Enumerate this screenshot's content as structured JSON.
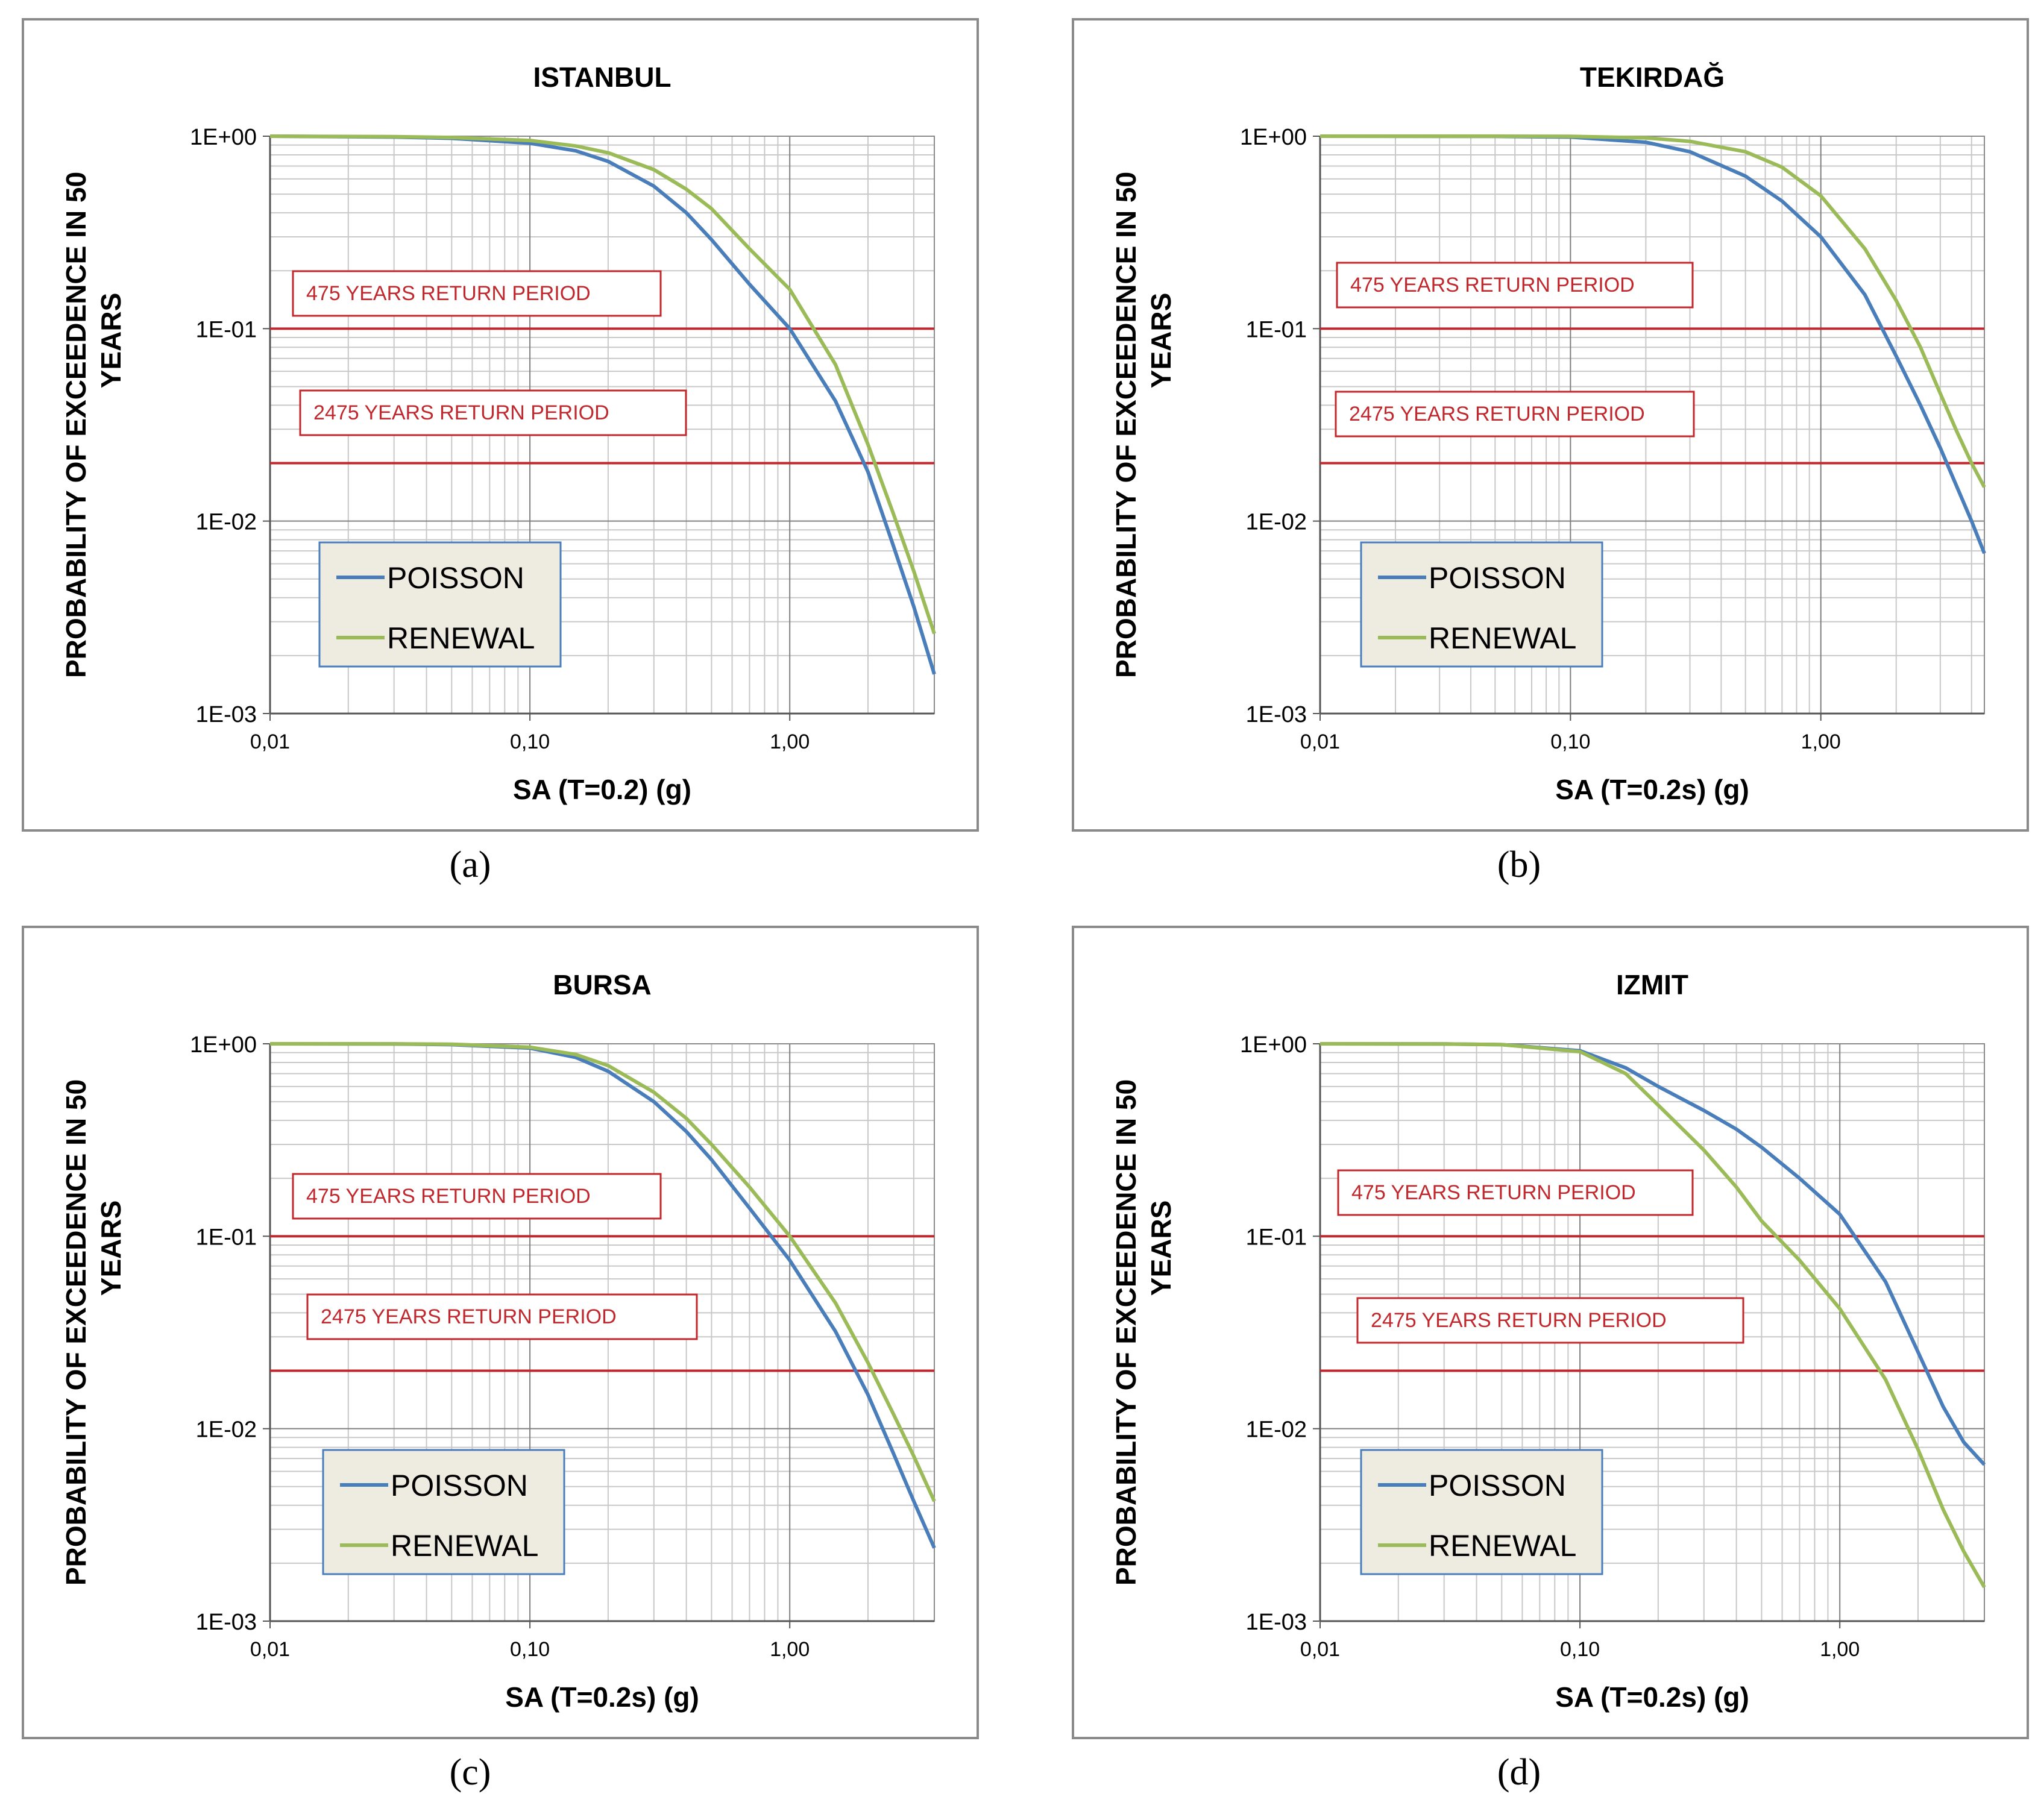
{
  "colors": {
    "poisson": "#4a7ebb",
    "renewal": "#9bbb59",
    "ref_line": "#c0282d",
    "grid": "#c8c8c8",
    "grid_major": "#7f7f7f",
    "legend_bg": "#eeece1",
    "legend_border": "#4a7ebb"
  },
  "captions": [
    "(a)",
    "(b)",
    "(c)",
    "(d)"
  ],
  "chart_data": [
    {
      "type": "line",
      "title": "ISTANBUL",
      "ylabel_lines": [
        "PROBABILITY OF EXCEEDENCE IN 50",
        "YEARS"
      ],
      "xlabel": "SA (T=0.2) (g)",
      "xscale": "log",
      "yscale": "log",
      "xlim": [
        0.01,
        3.6
      ],
      "ylim": [
        0.001,
        1
      ],
      "xticks": [
        "0,01",
        "0,10",
        "1,00"
      ],
      "yticks": [
        "1E+00",
        "1E-01",
        "1E-02",
        "1E-03"
      ],
      "reference_lines": [
        {
          "y": 0.1,
          "label": "475 YEARS RETURN PERIOD"
        },
        {
          "y": 0.02,
          "label": "2475 YEARS RETURN PERIOD"
        }
      ],
      "legend": [
        "POISSON",
        "RENEWAL"
      ],
      "series": [
        {
          "name": "POISSON",
          "x": [
            0.01,
            0.03,
            0.05,
            0.1,
            0.15,
            0.2,
            0.3,
            0.4,
            0.5,
            0.7,
            1.0,
            1.5,
            2.0,
            2.5,
            3.0,
            3.6
          ],
          "y": [
            1.0,
            0.99,
            0.975,
            0.92,
            0.84,
            0.74,
            0.55,
            0.4,
            0.29,
            0.17,
            0.1,
            0.042,
            0.018,
            0.0075,
            0.0036,
            0.0016
          ]
        },
        {
          "name": "RENEWAL",
          "x": [
            0.01,
            0.03,
            0.05,
            0.1,
            0.15,
            0.2,
            0.3,
            0.4,
            0.5,
            0.7,
            1.0,
            1.5,
            2.0,
            2.5,
            3.0,
            3.6
          ],
          "y": [
            1.0,
            0.995,
            0.985,
            0.95,
            0.89,
            0.82,
            0.67,
            0.53,
            0.42,
            0.26,
            0.16,
            0.065,
            0.025,
            0.011,
            0.0055,
            0.0026
          ]
        }
      ]
    },
    {
      "type": "line",
      "title": "TEKIRDAĞ",
      "ylabel_lines": [
        "PROBABILITY OF EXCEEDENCE IN 50",
        "YEARS"
      ],
      "xlabel": "SA (T=0.2s)  (g)",
      "xscale": "log",
      "yscale": "log",
      "xlim": [
        0.01,
        4.5
      ],
      "ylim": [
        0.001,
        1
      ],
      "xticks": [
        "0,01",
        "0,10",
        "1,00"
      ],
      "yticks": [
        "1E+00",
        "1E-01",
        "1E-02",
        "1E-03"
      ],
      "reference_lines": [
        {
          "y": 0.1,
          "label": "475 YEARS RETURN PERIOD"
        },
        {
          "y": 0.02,
          "label": "2475 YEARS RETURN PERIOD"
        }
      ],
      "legend": [
        "POISSON",
        "RENEWAL"
      ],
      "series": [
        {
          "name": "POISSON",
          "x": [
            0.01,
            0.05,
            0.1,
            0.2,
            0.3,
            0.5,
            0.7,
            1.0,
            1.5,
            2.0,
            2.5,
            3.0,
            3.5,
            4.0,
            4.5
          ],
          "y": [
            1.0,
            0.998,
            0.99,
            0.93,
            0.83,
            0.62,
            0.46,
            0.3,
            0.15,
            0.072,
            0.04,
            0.024,
            0.015,
            0.01,
            0.0068
          ]
        },
        {
          "name": "RENEWAL",
          "x": [
            0.01,
            0.05,
            0.1,
            0.2,
            0.3,
            0.5,
            0.7,
            1.0,
            1.5,
            2.0,
            2.5,
            3.0,
            3.5,
            4.0,
            4.5
          ],
          "y": [
            1.0,
            1.0,
            0.998,
            0.98,
            0.94,
            0.83,
            0.69,
            0.49,
            0.26,
            0.14,
            0.08,
            0.046,
            0.029,
            0.02,
            0.015
          ]
        }
      ]
    },
    {
      "type": "line",
      "title": "BURSA",
      "ylabel_lines": [
        "PROBABILITY  OF  EXCEEDENCE IN 50",
        "YEARS"
      ],
      "xlabel": "SA (T=0.2s)  (g)",
      "xscale": "log",
      "yscale": "log",
      "xlim": [
        0.01,
        3.6
      ],
      "ylim": [
        0.001,
        1
      ],
      "xticks": [
        "0,01",
        "0,10",
        "1,00"
      ],
      "yticks": [
        "1E+00",
        "1E-01",
        "1E-02",
        "1E-03"
      ],
      "reference_lines": [
        {
          "y": 0.1,
          "label": "475 YEARS RETURN PERIOD"
        },
        {
          "y": 0.02,
          "label": "2475 YEARS RETURN PERIOD"
        }
      ],
      "legend": [
        "POISSON",
        "RENEWAL"
      ],
      "series": [
        {
          "name": "POISSON",
          "x": [
            0.01,
            0.03,
            0.05,
            0.1,
            0.15,
            0.2,
            0.3,
            0.4,
            0.5,
            0.7,
            1.0,
            1.5,
            2.0,
            2.5,
            3.0,
            3.6
          ],
          "y": [
            1.0,
            0.998,
            0.99,
            0.95,
            0.85,
            0.72,
            0.5,
            0.35,
            0.25,
            0.14,
            0.075,
            0.032,
            0.015,
            0.0075,
            0.0042,
            0.0024
          ]
        },
        {
          "name": "RENEWAL",
          "x": [
            0.01,
            0.03,
            0.05,
            0.1,
            0.15,
            0.2,
            0.3,
            0.4,
            0.5,
            0.7,
            1.0,
            1.5,
            2.0,
            2.5,
            3.0,
            3.6
          ],
          "y": [
            1.0,
            0.999,
            0.995,
            0.96,
            0.88,
            0.77,
            0.56,
            0.41,
            0.3,
            0.18,
            0.1,
            0.045,
            0.022,
            0.012,
            0.0072,
            0.0042
          ]
        }
      ]
    },
    {
      "type": "line",
      "title": "IZMIT",
      "ylabel_lines": [
        "PROBABILITY OF EXCEEDENCE IN 50",
        "YEARS"
      ],
      "xlabel": "SA (T=0.2s)  (g)",
      "xscale": "log",
      "yscale": "log",
      "xlim": [
        0.01,
        3.6
      ],
      "ylim": [
        0.001,
        1
      ],
      "xticks": [
        "0,01",
        "0,10",
        "1,00"
      ],
      "yticks": [
        "1E+00",
        "1E-01",
        "1E-02",
        "1E-03"
      ],
      "reference_lines": [
        {
          "y": 0.1,
          "label": "475 YEARS RETURN PERIOD"
        },
        {
          "y": 0.02,
          "label": "2475 YEARS RETURN PERIOD"
        }
      ],
      "legend": [
        "POISSON",
        "RENEWAL"
      ],
      "series": [
        {
          "name": "POISSON",
          "x": [
            0.01,
            0.03,
            0.05,
            0.1,
            0.15,
            0.2,
            0.3,
            0.4,
            0.5,
            0.7,
            1.0,
            1.5,
            2.0,
            2.5,
            3.0,
            3.6
          ],
          "y": [
            1.0,
            0.998,
            0.99,
            0.92,
            0.75,
            0.6,
            0.45,
            0.36,
            0.29,
            0.2,
            0.13,
            0.058,
            0.025,
            0.013,
            0.0085,
            0.0065
          ]
        },
        {
          "name": "RENEWAL",
          "x": [
            0.01,
            0.03,
            0.05,
            0.1,
            0.15,
            0.2,
            0.3,
            0.4,
            0.5,
            0.7,
            1.0,
            1.5,
            2.0,
            2.5,
            3.0,
            3.6
          ],
          "y": [
            1.0,
            0.998,
            0.99,
            0.91,
            0.7,
            0.48,
            0.28,
            0.18,
            0.12,
            0.075,
            0.042,
            0.018,
            0.0078,
            0.0038,
            0.0023,
            0.0015
          ]
        }
      ]
    }
  ]
}
